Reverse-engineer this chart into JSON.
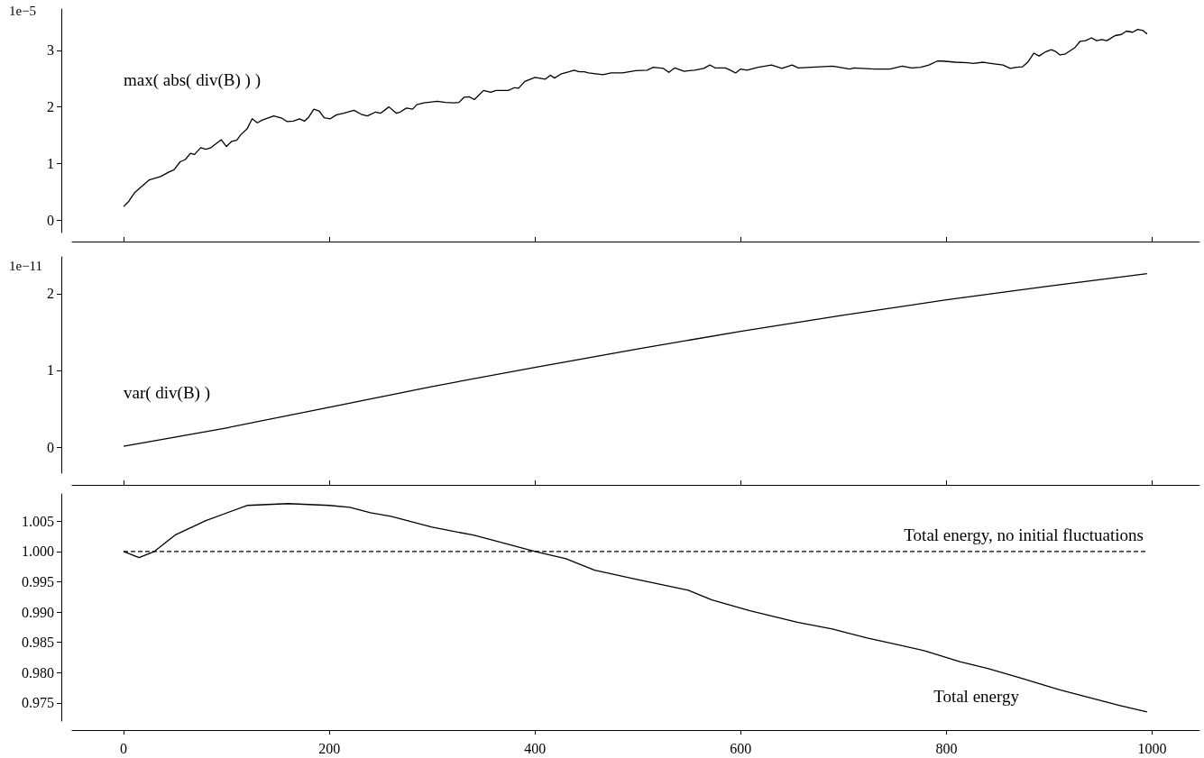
{
  "chart_data": [
    {
      "type": "line",
      "ylabel": "1e−5",
      "x": [
        0,
        5,
        11,
        25,
        36,
        44,
        49,
        55,
        60,
        65,
        69,
        75,
        80,
        85,
        95,
        100,
        105,
        110,
        114,
        120,
        125,
        130,
        135,
        146,
        154,
        159,
        165,
        171,
        176,
        180,
        185,
        190,
        195,
        201,
        207,
        214,
        224,
        231,
        237,
        245,
        250,
        258,
        265,
        269,
        275,
        281,
        285,
        292,
        305,
        313,
        321,
        326,
        331,
        336,
        341,
        345,
        350,
        357,
        362,
        374,
        380,
        384,
        390,
        400,
        410,
        415,
        419,
        425,
        433,
        438,
        443,
        448,
        452,
        466,
        474,
        485,
        498,
        509,
        515,
        525,
        530,
        536,
        545,
        555,
        564,
        570,
        575,
        585,
        590,
        595,
        600,
        606,
        617,
        630,
        640,
        650,
        656,
        677,
        689,
        696,
        706,
        710,
        730,
        745,
        757,
        766,
        775,
        783,
        791,
        796,
        809,
        821,
        826,
        836,
        843,
        855,
        862,
        868,
        874,
        879,
        885,
        890,
        896,
        902,
        906,
        910,
        915,
        925,
        930,
        935,
        941,
        946,
        951,
        956,
        964,
        970,
        975,
        981,
        986,
        991,
        995
      ],
      "series": [
        {
          "name": "max( abs( div(B) ) )",
          "color": "#000000",
          "values": [
            0.24,
            0.33,
            0.49,
            0.71,
            0.77,
            0.85,
            0.89,
            1.03,
            1.07,
            1.18,
            1.16,
            1.28,
            1.25,
            1.28,
            1.42,
            1.3,
            1.39,
            1.41,
            1.51,
            1.61,
            1.79,
            1.72,
            1.77,
            1.84,
            1.8,
            1.74,
            1.75,
            1.79,
            1.75,
            1.82,
            1.96,
            1.93,
            1.81,
            1.79,
            1.86,
            1.89,
            1.94,
            1.87,
            1.84,
            1.91,
            1.89,
            2.0,
            1.89,
            1.91,
            1.98,
            1.96,
            2.04,
            2.07,
            2.1,
            2.08,
            2.07,
            2.08,
            2.17,
            2.18,
            2.13,
            2.2,
            2.29,
            2.26,
            2.29,
            2.29,
            2.34,
            2.33,
            2.45,
            2.52,
            2.49,
            2.56,
            2.51,
            2.58,
            2.62,
            2.65,
            2.62,
            2.62,
            2.6,
            2.57,
            2.6,
            2.6,
            2.64,
            2.65,
            2.7,
            2.68,
            2.61,
            2.69,
            2.63,
            2.65,
            2.68,
            2.74,
            2.69,
            2.69,
            2.65,
            2.6,
            2.67,
            2.65,
            2.7,
            2.74,
            2.68,
            2.74,
            2.69,
            2.71,
            2.72,
            2.7,
            2.67,
            2.69,
            2.67,
            2.67,
            2.72,
            2.69,
            2.7,
            2.74,
            2.81,
            2.81,
            2.79,
            2.78,
            2.77,
            2.79,
            2.77,
            2.74,
            2.68,
            2.7,
            2.71,
            2.79,
            2.95,
            2.9,
            2.97,
            3.01,
            2.98,
            2.92,
            2.93,
            3.05,
            3.16,
            3.17,
            3.22,
            3.17,
            3.19,
            3.17,
            3.26,
            3.28,
            3.34,
            3.32,
            3.37,
            3.35,
            3.29
          ]
        }
      ],
      "xlim": [
        -50,
        1046
      ],
      "xticks": [
        0,
        200,
        400,
        600,
        800,
        1000
      ],
      "ylim": [
        -0.22,
        3.73
      ],
      "yticks": [
        0,
        1,
        2,
        3
      ],
      "tick_labels": "y",
      "marker": "none",
      "line_style": "solid"
    },
    {
      "type": "line",
      "ylabel": "1e−11",
      "x": [
        0,
        100,
        200,
        300,
        400,
        500,
        600,
        700,
        800,
        900,
        995
      ],
      "series": [
        {
          "name": "var( div(B) )",
          "color": "#000000",
          "values": [
            0.01,
            0.25,
            0.52,
            0.79,
            1.04,
            1.28,
            1.51,
            1.72,
            1.92,
            2.1,
            2.26
          ]
        }
      ],
      "xlim": [
        -50,
        1046
      ],
      "xticks": [
        0,
        200,
        400,
        600,
        800,
        1000
      ],
      "ylim": [
        -0.34,
        2.48
      ],
      "yticks": [
        0,
        1,
        2
      ],
      "tick_labels": "y",
      "marker": "none",
      "line_style": "solid"
    },
    {
      "type": "line",
      "x": [
        0,
        15,
        30,
        50,
        80,
        120,
        160,
        200,
        220,
        240,
        260,
        300,
        340,
        360,
        400,
        430,
        458,
        496,
        549,
        572,
        609,
        655,
        689,
        723,
        753,
        779,
        813,
        840,
        874,
        911,
        968,
        995
      ],
      "series": [
        {
          "name": "Total energy",
          "color": "#000000",
          "values": [
            1.0,
            0.999,
            1.0,
            1.0027,
            1.0051,
            1.0076,
            1.0079,
            1.0076,
            1.0073,
            1.0064,
            1.0058,
            1.004,
            1.0027,
            1.0018,
            1.0,
            0.9988,
            0.9969,
            0.9955,
            0.9936,
            0.992,
            0.9902,
            0.9883,
            0.9872,
            0.9857,
            0.9846,
            0.9836,
            0.9818,
            0.9807,
            0.979,
            0.9771,
            0.9746,
            0.9735
          ],
          "line_style": "solid"
        },
        {
          "name": "Total energy, no initial fluctuations",
          "color": "#000000",
          "x": [
            0,
            995
          ],
          "values": [
            1.0,
            1.0
          ],
          "line_style": "dashed"
        }
      ],
      "xlim": [
        -50,
        1046
      ],
      "xticks": [
        0,
        200,
        400,
        600,
        800,
        1000
      ],
      "ylim": [
        0.972,
        1.0095
      ],
      "yticks": [
        {
          "value": 0.975,
          "label": "0.975"
        },
        {
          "value": 0.98,
          "label": "0.980"
        },
        {
          "value": 0.985,
          "label": "0.985"
        },
        {
          "value": 0.99,
          "label": "0.990"
        },
        {
          "value": 0.995,
          "label": "0.995"
        },
        {
          "value": 1.0,
          "label": "1.000"
        },
        {
          "value": 1.005,
          "label": "1.005"
        }
      ],
      "marker": "none"
    }
  ]
}
